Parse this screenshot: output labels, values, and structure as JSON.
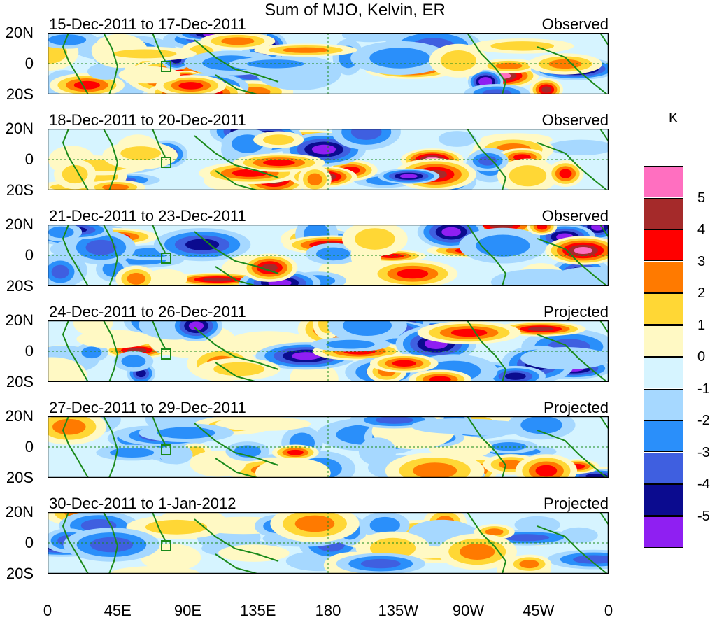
{
  "title": "Sum of MJO, Kelvin, ER",
  "units": "K",
  "lat_labels": [
    "20N",
    "0",
    "20S"
  ],
  "lon_labels": [
    "0",
    "45E",
    "90E",
    "135E",
    "180",
    "135W",
    "90W",
    "45W",
    "0"
  ],
  "panels": [
    {
      "date_range": "15-Dec-2011 to 17-Dec-2011",
      "status": "Observed"
    },
    {
      "date_range": "18-Dec-2011 to 20-Dec-2011",
      "status": "Observed"
    },
    {
      "date_range": "21-Dec-2011 to 23-Dec-2011",
      "status": "Observed"
    },
    {
      "date_range": "24-Dec-2011 to 26-Dec-2011",
      "status": "Projected"
    },
    {
      "date_range": "27-Dec-2011 to 29-Dec-2011",
      "status": "Projected"
    },
    {
      "date_range": "30-Dec-2011 to 1-Jan-2012",
      "status": "Projected"
    }
  ],
  "colorbar": {
    "labels": [
      "5",
      "4",
      "3",
      "2",
      "1",
      "0",
      "-1",
      "-2",
      "-3",
      "-4",
      "-5"
    ],
    "colors": [
      "#ff6fc0",
      "#a52a2a",
      "#ff0000",
      "#ff7a00",
      "#ffd735",
      "#fff9c4",
      "#d6f4ff",
      "#a6d8ff",
      "#2a8ffa",
      "#3f5fe0",
      "#0b0b8f",
      "#8f1ff2"
    ]
  },
  "colors": {
    "coastline": "#1a8a1a",
    "background": "#ffffff"
  }
}
